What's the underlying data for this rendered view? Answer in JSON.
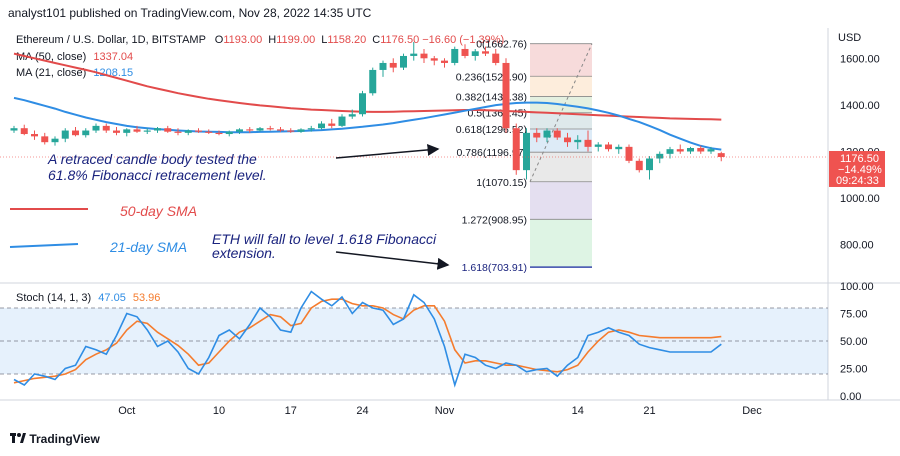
{
  "header": "analyst101 published on TradingView.com, Nov 28, 2022 14:35 UTC",
  "legend": {
    "symbol": "Ethereum / U.S. Dollar, 1D, BITSTAMP",
    "ohlc": [
      {
        "label": "O",
        "value": "1193.00"
      },
      {
        "label": "H",
        "value": "1199.00"
      },
      {
        "label": "L",
        "value": "1158.20"
      },
      {
        "label": "C",
        "value": "1176.50"
      }
    ],
    "change": "−16.60 (−1.39%)",
    "ma50_label": "MA (50, close)",
    "ma50_value": "1337.04",
    "ma21_label": "MA (21, close)",
    "ma21_value": "1208.15",
    "stoch_label": "Stoch (14, 1, 3)",
    "stoch_k": "47.05",
    "stoch_d": "53.96"
  },
  "currency": "USD",
  "price_badge": {
    "price": "1176.50",
    "change": "−14.49%",
    "countdown": "09:24:33"
  },
  "annotations": {
    "fib_test": [
      "A retraced candle body tested the",
      "61.8% Fibonacci retracement level."
    ],
    "sma50": "50-day SMA",
    "sma21": "21-day SMA",
    "fib_ext": [
      "ETH will fall to level 1.618 Fibonacci",
      "extension."
    ]
  },
  "footer_logo": "TradingView",
  "colors": {
    "ma50": "#e24b4b",
    "ma21": "#2f8de4",
    "up": "#26a69a",
    "down": "#ef5350",
    "stoch_k": "#2f8de4",
    "stoch_d": "#f57c2e",
    "annotation": "#1a237e"
  },
  "chart_data": [
    {
      "type": "candlestick",
      "title": "Ethereum / U.S. Dollar, 1D, BITSTAMP",
      "ylabel": "USD",
      "ylim": [
        640,
        1730
      ],
      "y_ticks": [
        800,
        1000,
        1200,
        1400,
        1600
      ],
      "y_tick_labels": [
        "800.00",
        "1000.00",
        "1200.00",
        "1400.00",
        "1600.00"
      ],
      "x_tick_labels": [
        {
          "label": "Oct",
          "index": 11
        },
        {
          "label": "10",
          "index": 20
        },
        {
          "label": "17",
          "index": 27
        },
        {
          "label": "24",
          "index": 34
        },
        {
          "label": "Nov",
          "index": 42
        },
        {
          "label": "14",
          "index": 55
        },
        {
          "label": "21",
          "index": 62
        },
        {
          "label": "Dec",
          "index": 72
        }
      ],
      "candles": [
        [
          1290,
          1310,
          1280,
          1300
        ],
        [
          1300,
          1315,
          1270,
          1275
        ],
        [
          1275,
          1290,
          1250,
          1265
        ],
        [
          1265,
          1280,
          1230,
          1240
        ],
        [
          1240,
          1265,
          1225,
          1255
        ],
        [
          1255,
          1300,
          1240,
          1290
        ],
        [
          1290,
          1305,
          1265,
          1270
        ],
        [
          1270,
          1300,
          1260,
          1290
        ],
        [
          1290,
          1320,
          1280,
          1310
        ],
        [
          1310,
          1320,
          1280,
          1290
        ],
        [
          1290,
          1305,
          1270,
          1280
        ],
        [
          1280,
          1300,
          1265,
          1295
        ],
        [
          1295,
          1310,
          1280,
          1285
        ],
        [
          1285,
          1300,
          1275,
          1290
        ],
        [
          1290,
          1305,
          1280,
          1300
        ],
        [
          1300,
          1310,
          1280,
          1285
        ],
        [
          1285,
          1300,
          1270,
          1280
        ],
        [
          1280,
          1295,
          1270,
          1290
        ],
        [
          1290,
          1300,
          1280,
          1285
        ],
        [
          1285,
          1295,
          1275,
          1280
        ],
        [
          1280,
          1290,
          1270,
          1275
        ],
        [
          1275,
          1290,
          1265,
          1285
        ],
        [
          1285,
          1300,
          1275,
          1295
        ],
        [
          1295,
          1305,
          1280,
          1290
        ],
        [
          1290,
          1305,
          1285,
          1300
        ],
        [
          1300,
          1310,
          1290,
          1295
        ],
        [
          1295,
          1305,
          1285,
          1290
        ],
        [
          1290,
          1300,
          1280,
          1285
        ],
        [
          1285,
          1300,
          1280,
          1295
        ],
        [
          1295,
          1310,
          1285,
          1300
        ],
        [
          1300,
          1330,
          1295,
          1320
        ],
        [
          1320,
          1340,
          1300,
          1310
        ],
        [
          1310,
          1360,
          1305,
          1350
        ],
        [
          1350,
          1380,
          1340,
          1360
        ],
        [
          1360,
          1460,
          1350,
          1450
        ],
        [
          1450,
          1560,
          1440,
          1550
        ],
        [
          1550,
          1590,
          1520,
          1580
        ],
        [
          1580,
          1600,
          1540,
          1560
        ],
        [
          1560,
          1620,
          1550,
          1610
        ],
        [
          1610,
          1670,
          1590,
          1620
        ],
        [
          1620,
          1640,
          1580,
          1600
        ],
        [
          1600,
          1610,
          1570,
          1590
        ],
        [
          1590,
          1600,
          1560,
          1580
        ],
        [
          1580,
          1650,
          1570,
          1640
        ],
        [
          1640,
          1660,
          1600,
          1610
        ],
        [
          1610,
          1640,
          1590,
          1630
        ],
        [
          1630,
          1650,
          1610,
          1620
        ],
        [
          1620,
          1640,
          1570,
          1580
        ],
        [
          1580,
          1600,
          1280,
          1300
        ],
        [
          1300,
          1320,
          1100,
          1120
        ],
        [
          1120,
          1300,
          1080,
          1280
        ],
        [
          1280,
          1300,
          1240,
          1260
        ],
        [
          1260,
          1300,
          1240,
          1290
        ],
        [
          1290,
          1300,
          1250,
          1260
        ],
        [
          1260,
          1280,
          1220,
          1240
        ],
        [
          1240,
          1270,
          1210,
          1250
        ],
        [
          1250,
          1290,
          1200,
          1220
        ],
        [
          1220,
          1240,
          1200,
          1230
        ],
        [
          1230,
          1240,
          1200,
          1210
        ],
        [
          1210,
          1230,
          1190,
          1220
        ],
        [
          1220,
          1230,
          1150,
          1160
        ],
        [
          1160,
          1170,
          1110,
          1120
        ],
        [
          1120,
          1180,
          1080,
          1170
        ],
        [
          1170,
          1200,
          1150,
          1190
        ],
        [
          1190,
          1220,
          1170,
          1210
        ],
        [
          1210,
          1230,
          1190,
          1200
        ],
        [
          1200,
          1220,
          1190,
          1215
        ],
        [
          1215,
          1225,
          1190,
          1200
        ],
        [
          1200,
          1220,
          1190,
          1210
        ],
        [
          1193,
          1199,
          1158.2,
          1176.5
        ]
      ],
      "series": [
        {
          "name": "MA (50, close)",
          "values": [
            1620,
            1610,
            1600,
            1590,
            1580,
            1570,
            1560,
            1550,
            1540,
            1528,
            1516,
            1504,
            1492,
            1480,
            1470,
            1460,
            1450,
            1442,
            1434,
            1426,
            1420,
            1414,
            1408,
            1403,
            1398,
            1394,
            1390,
            1386,
            1383,
            1380,
            1378,
            1376,
            1374,
            1372,
            1371,
            1370,
            1370,
            1371,
            1372,
            1373,
            1374,
            1375,
            1376,
            1377,
            1378,
            1378,
            1377,
            1376,
            1374,
            1372,
            1370,
            1368,
            1366,
            1364,
            1362,
            1360,
            1358,
            1356,
            1354,
            1352,
            1350,
            1348,
            1346,
            1344,
            1342,
            1341,
            1340,
            1339,
            1338,
            1337.04
          ]
        },
        {
          "name": "MA (21, close)",
          "values": [
            1430,
            1420,
            1408,
            1396,
            1384,
            1370,
            1358,
            1346,
            1336,
            1326,
            1318,
            1310,
            1304,
            1300,
            1296,
            1293,
            1290,
            1288,
            1286,
            1285,
            1284,
            1283,
            1283,
            1283,
            1284,
            1285,
            1286,
            1287,
            1288,
            1290,
            1292,
            1295,
            1298,
            1302,
            1306,
            1311,
            1316,
            1322,
            1329,
            1336,
            1343,
            1351,
            1359,
            1367,
            1375,
            1383,
            1391,
            1399,
            1404,
            1408,
            1410,
            1410,
            1408,
            1404,
            1398,
            1392,
            1385,
            1376,
            1366,
            1354,
            1340,
            1326,
            1310,
            1292,
            1272,
            1255,
            1238,
            1224,
            1214,
            1208.15
          ]
        }
      ],
      "fibonacci": {
        "levels": [
          {
            "ratio": "0",
            "price": "1662.76"
          },
          {
            "ratio": "0.236",
            "price": "1522.90"
          },
          {
            "ratio": "0.382",
            "price": "1436.38"
          },
          {
            "ratio": "0.5",
            "price": "1366.45"
          },
          {
            "ratio": "0.618",
            "price": "1296.52"
          },
          {
            "ratio": "0.786",
            "price": "1196.97"
          },
          {
            "ratio": "1",
            "price": "1070.15"
          },
          {
            "ratio": "1.272",
            "price": "908.95"
          },
          {
            "ratio": "1.618",
            "price": "703.91"
          }
        ]
      }
    },
    {
      "type": "line",
      "title": "Stoch (14, 1, 3)",
      "ylim": [
        0,
        100
      ],
      "y_ticks": [
        0,
        25,
        50,
        75,
        100
      ],
      "y_tick_labels": [
        "0.00",
        "25.00",
        "50.00",
        "75.00",
        "100.00"
      ],
      "band": [
        20,
        80
      ],
      "series": [
        {
          "name": "%K",
          "values": [
            15,
            10,
            20,
            18,
            15,
            25,
            28,
            45,
            42,
            38,
            55,
            75,
            72,
            60,
            45,
            50,
            40,
            25,
            20,
            35,
            55,
            60,
            52,
            65,
            80,
            72,
            60,
            58,
            80,
            95,
            88,
            82,
            90,
            75,
            85,
            80,
            78,
            65,
            70,
            92,
            85,
            70,
            45,
            10,
            38,
            35,
            28,
            25,
            30,
            28,
            22,
            24,
            25,
            18,
            28,
            35,
            55,
            58,
            62,
            58,
            55,
            47.05,
            44,
            42,
            40,
            40,
            40,
            40,
            40,
            47.05
          ]
        },
        {
          "name": "%D",
          "values": [
            12,
            14,
            16,
            17,
            18,
            20,
            24,
            33,
            38,
            42,
            48,
            60,
            68,
            66,
            58,
            52,
            46,
            38,
            28,
            30,
            40,
            50,
            58,
            62,
            68,
            74,
            72,
            64,
            66,
            80,
            86,
            88,
            88,
            84,
            82,
            82,
            80,
            74,
            70,
            78,
            82,
            82,
            68,
            42,
            30,
            32,
            32,
            30,
            28,
            28,
            26,
            24,
            23,
            22,
            24,
            28,
            40,
            50,
            58,
            60,
            58,
            55,
            53.96,
            53,
            53,
            53,
            53,
            53,
            53,
            53.96
          ]
        }
      ]
    }
  ]
}
